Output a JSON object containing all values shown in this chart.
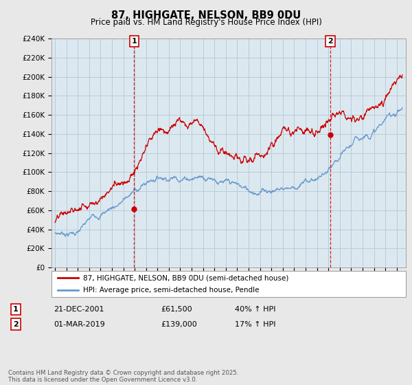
{
  "title": "87, HIGHGATE, NELSON, BB9 0DU",
  "subtitle": "Price paid vs. HM Land Registry's House Price Index (HPI)",
  "legend_entry1": "87, HIGHGATE, NELSON, BB9 0DU (semi-detached house)",
  "legend_entry2": "HPI: Average price, semi-detached house, Pendle",
  "annotation1_date": "21-DEC-2001",
  "annotation1_price": "£61,500",
  "annotation1_hpi": "40% ↑ HPI",
  "annotation2_date": "01-MAR-2019",
  "annotation2_price": "£139,000",
  "annotation2_hpi": "17% ↑ HPI",
  "footer": "Contains HM Land Registry data © Crown copyright and database right 2025.\nThis data is licensed under the Open Government Licence v3.0.",
  "line1_color": "#cc0000",
  "line2_color": "#6699cc",
  "vline_color": "#cc0000",
  "annotation_box_color": "#cc0000",
  "ylim": [
    0,
    240000
  ],
  "yticks": [
    0,
    20000,
    40000,
    60000,
    80000,
    100000,
    120000,
    140000,
    160000,
    180000,
    200000,
    220000,
    240000
  ],
  "ytick_labels": [
    "£0",
    "£20K",
    "£40K",
    "£60K",
    "£80K",
    "£100K",
    "£120K",
    "£140K",
    "£160K",
    "£180K",
    "£200K",
    "£220K",
    "£240K"
  ],
  "background_color": "#e8e8e8",
  "plot_background": "#dce8f0",
  "grid_color": "#b8ccd8",
  "vline1_x": 2001.96,
  "vline2_x": 2019.17,
  "sale1_y": 61500,
  "sale2_y": 139000,
  "xmin": 1994.7,
  "xmax": 2025.8
}
